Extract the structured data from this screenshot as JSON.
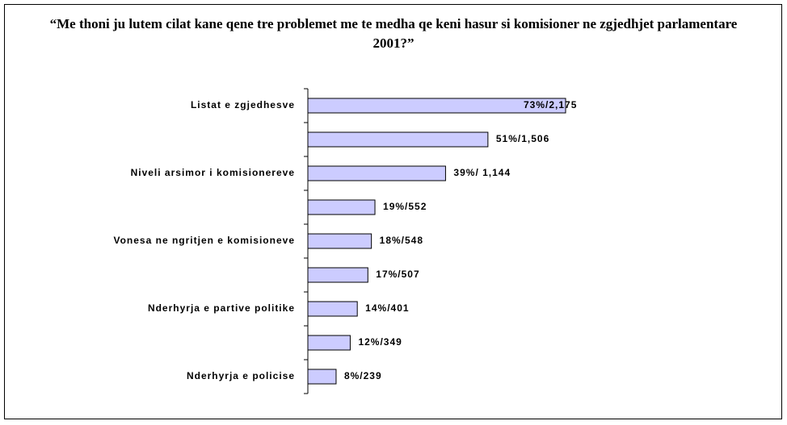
{
  "chart_data": {
    "type": "bar",
    "orientation": "horizontal",
    "title": "“Me thoni ju lutem cilat kane qene tre problemet me te medha qe keni hasur si komisioner ne zgjedhjet parlamentare 2001?”",
    "categories": [
      "Listat e zgjedhesve",
      null,
      "Niveli arsimor i komisionereve",
      null,
      "Vonesa ne ngritjen e komisioneve",
      null,
      "Nderhyrja e partive politike",
      null,
      "Nderhyrja e policise"
    ],
    "values": [
      73,
      51,
      39,
      19,
      18,
      17,
      14,
      12,
      8
    ],
    "value_labels": [
      "73%/2,175",
      "51%/1,506",
      "39%/ 1,144",
      "19%/552",
      "18%/548",
      "17%/507",
      "14%/401",
      "12%/349",
      "8%/239"
    ],
    "color": "#ccccff"
  }
}
